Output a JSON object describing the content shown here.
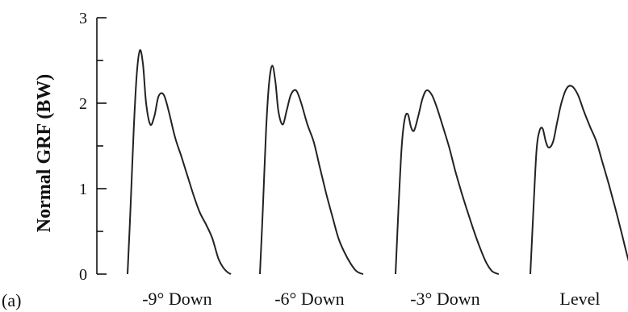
{
  "chart_data": {
    "type": "line",
    "panel_label": "(a)",
    "title": "",
    "xlabel": "",
    "ylabel": "Normal GRF (BW)",
    "ylim": [
      0,
      3
    ],
    "yticks": [
      0,
      1,
      2,
      3
    ],
    "grid": false,
    "categories": [
      "-9° Down",
      "-6° Down",
      "-3° Down",
      "Level"
    ],
    "series": [
      {
        "x": [
          0,
          0.03,
          0.06,
          0.09,
          0.12,
          0.15,
          0.18,
          0.22,
          0.26,
          0.3,
          0.35,
          0.4,
          0.46,
          0.52,
          0.58,
          0.64,
          0.7,
          0.76,
          0.82,
          0.88,
          0.93,
          0.97,
          1.0
        ],
        "values": [
          0,
          0.8,
          1.7,
          2.35,
          2.62,
          2.45,
          2.0,
          1.75,
          1.85,
          2.08,
          2.1,
          1.9,
          1.6,
          1.38,
          1.15,
          0.92,
          0.72,
          0.58,
          0.42,
          0.18,
          0.07,
          0.02,
          0
        ]
      },
      {
        "x": [
          0,
          0.03,
          0.06,
          0.09,
          0.12,
          0.15,
          0.18,
          0.22,
          0.26,
          0.3,
          0.35,
          0.4,
          0.46,
          0.52,
          0.58,
          0.64,
          0.7,
          0.76,
          0.82,
          0.88,
          0.93,
          0.97,
          1.0
        ],
        "values": [
          0,
          0.8,
          1.7,
          2.25,
          2.44,
          2.25,
          1.9,
          1.75,
          1.92,
          2.1,
          2.15,
          2.0,
          1.75,
          1.55,
          1.25,
          0.95,
          0.68,
          0.42,
          0.25,
          0.12,
          0.04,
          0.01,
          0
        ]
      },
      {
        "x": [
          0,
          0.03,
          0.06,
          0.09,
          0.12,
          0.15,
          0.18,
          0.22,
          0.26,
          0.3,
          0.35,
          0.4,
          0.46,
          0.52,
          0.58,
          0.64,
          0.7,
          0.76,
          0.82,
          0.88,
          0.93,
          0.97,
          1.0
        ],
        "values": [
          0,
          0.8,
          1.5,
          1.82,
          1.87,
          1.72,
          1.68,
          1.85,
          2.05,
          2.15,
          2.1,
          1.95,
          1.72,
          1.48,
          1.2,
          0.95,
          0.72,
          0.5,
          0.3,
          0.13,
          0.04,
          0.01,
          0
        ]
      },
      {
        "x": [
          0,
          0.03,
          0.06,
          0.09,
          0.12,
          0.15,
          0.18,
          0.22,
          0.26,
          0.3,
          0.35,
          0.4,
          0.46,
          0.52,
          0.58,
          0.64,
          0.7,
          0.76,
          0.82,
          0.88,
          0.92,
          0.96,
          1.0
        ],
        "values": [
          0,
          0.75,
          1.45,
          1.68,
          1.7,
          1.55,
          1.48,
          1.55,
          1.78,
          2.0,
          2.17,
          2.2,
          2.1,
          1.9,
          1.72,
          1.55,
          1.3,
          1.05,
          0.78,
          0.5,
          0.3,
          0.12,
          0
        ]
      }
    ]
  }
}
